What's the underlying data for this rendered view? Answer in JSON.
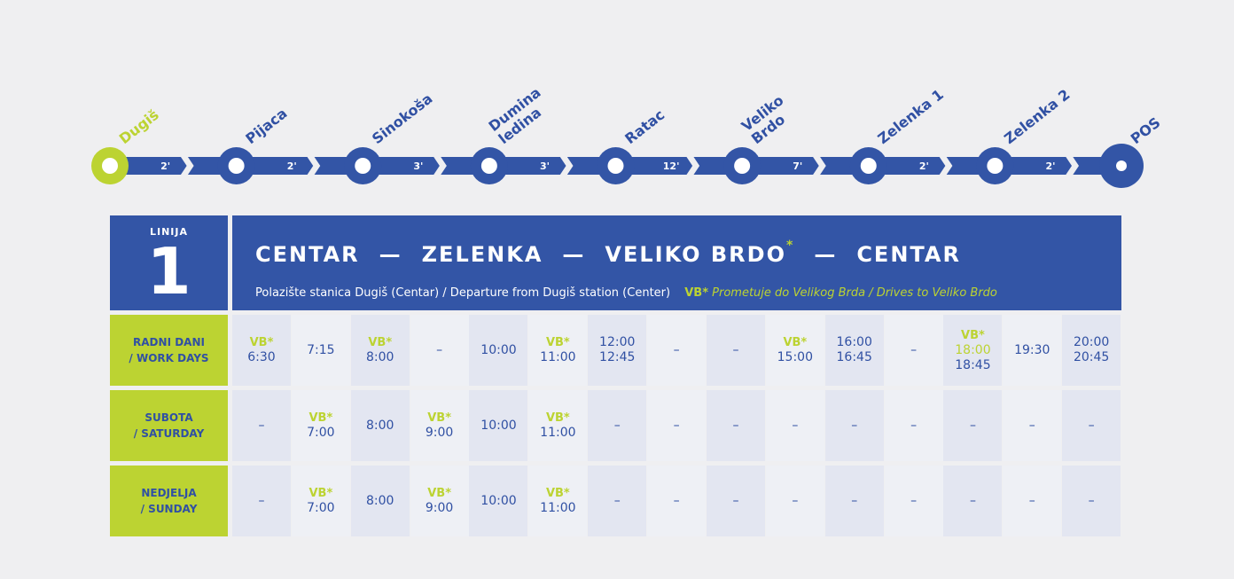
{
  "route_stops": [
    {
      "name": [
        "Dugiš"
      ],
      "duration": "2'"
    },
    {
      "name": [
        "Pijaca"
      ],
      "duration": "2'"
    },
    {
      "name": [
        "Sinokoša"
      ],
      "duration": "3'"
    },
    {
      "name": [
        "Dumina",
        "ledina"
      ],
      "duration": "3'"
    },
    {
      "name": [
        "Ratac"
      ],
      "duration": "12'"
    },
    {
      "name": [
        "Veliko",
        "Brdo"
      ],
      "duration": "7'"
    },
    {
      "name": [
        "Zelenka 1"
      ],
      "duration": "2'"
    },
    {
      "name": [
        "Zelenka 2"
      ],
      "duration": "2'"
    },
    {
      "name": [
        "POS"
      ],
      "duration": ""
    }
  ],
  "header": {
    "line_label": "LINIJA",
    "line_number": "1",
    "route": [
      "CENTAR",
      "ZELENKA",
      "VELIKO BRDO",
      "CENTAR"
    ],
    "route_dash": "—",
    "asterisk": "*",
    "departure": "Polazište stanica Dugiš (Centar)  /  Departure from Dugiš station (Center)",
    "vb_marker": "VB*",
    "vb_note": "Prometuje do Velikog Brda /  Drives to Veliko Brdo"
  },
  "schedule": [
    {
      "label": [
        "RADNI DANI",
        "/ WORK DAYS"
      ],
      "cells": [
        {
          "vb": "VB*",
          "times": [
            "6:30"
          ]
        },
        {
          "times": [
            "7:15"
          ]
        },
        {
          "vb": "VB*",
          "times": [
            "8:00"
          ]
        },
        {
          "times": [
            "–"
          ]
        },
        {
          "times": [
            "10:00"
          ]
        },
        {
          "vb": "VB*",
          "times": [
            "11:00"
          ]
        },
        {
          "times": [
            "12:00",
            "12:45"
          ]
        },
        {
          "times": [
            "–"
          ]
        },
        {
          "times": [
            "–"
          ]
        },
        {
          "vb": "VB*",
          "times": [
            "15:00"
          ]
        },
        {
          "times": [
            "16:00",
            "16:45"
          ]
        },
        {
          "times": [
            "–"
          ]
        },
        {
          "vb": "VB*",
          "times": [
            "18:00",
            "18:45"
          ],
          "green_first": true
        },
        {
          "times": [
            "19:30"
          ]
        },
        {
          "times": [
            "20:00",
            "20:45"
          ]
        }
      ]
    },
    {
      "label": [
        "SUBOTA",
        "/ SATURDAY"
      ],
      "cells": [
        {
          "times": [
            "–"
          ]
        },
        {
          "vb": "VB*",
          "times": [
            "7:00"
          ]
        },
        {
          "times": [
            "8:00"
          ]
        },
        {
          "vb": "VB*",
          "times": [
            "9:00"
          ]
        },
        {
          "times": [
            "10:00"
          ]
        },
        {
          "vb": "VB*",
          "times": [
            "11:00"
          ]
        },
        {
          "times": [
            "–"
          ]
        },
        {
          "times": [
            "–"
          ]
        },
        {
          "times": [
            "–"
          ]
        },
        {
          "times": [
            "–"
          ]
        },
        {
          "times": [
            "–"
          ]
        },
        {
          "times": [
            "–"
          ]
        },
        {
          "times": [
            "–"
          ]
        },
        {
          "times": [
            "–"
          ]
        },
        {
          "times": [
            "–"
          ]
        }
      ]
    },
    {
      "label": [
        "NEDJELJA",
        "/ SUNDAY"
      ],
      "cells": [
        {
          "times": [
            "–"
          ]
        },
        {
          "vb": "VB*",
          "times": [
            "7:00"
          ]
        },
        {
          "times": [
            "8:00"
          ]
        },
        {
          "vb": "VB*",
          "times": [
            "9:00"
          ]
        },
        {
          "times": [
            "10:00"
          ]
        },
        {
          "vb": "VB*",
          "times": [
            "11:00"
          ]
        },
        {
          "times": [
            "–"
          ]
        },
        {
          "times": [
            "–"
          ]
        },
        {
          "times": [
            "–"
          ]
        },
        {
          "times": [
            "–"
          ]
        },
        {
          "times": [
            "–"
          ]
        },
        {
          "times": [
            "–"
          ]
        },
        {
          "times": [
            "–"
          ]
        },
        {
          "times": [
            "–"
          ]
        },
        {
          "times": [
            "–"
          ]
        }
      ]
    }
  ],
  "colors": {
    "blue": "#3355a6",
    "green": "#bcd332",
    "background": "#efeff1"
  }
}
